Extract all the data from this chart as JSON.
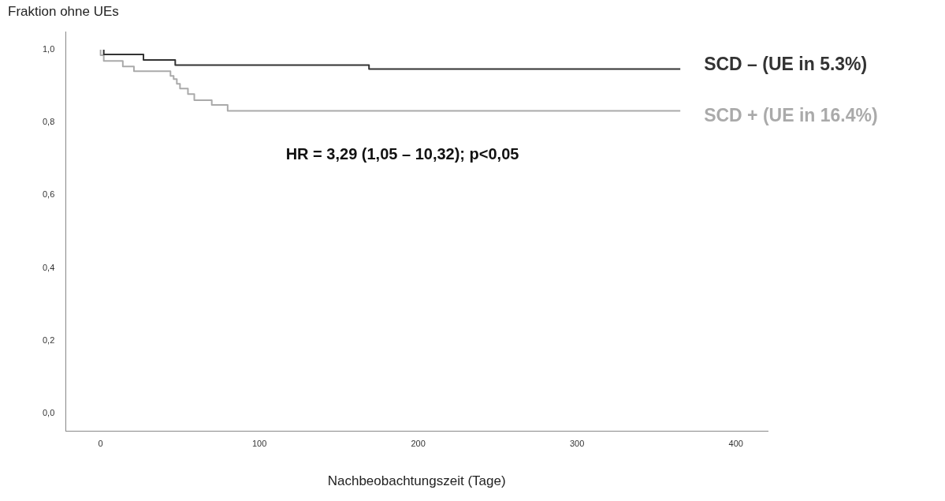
{
  "chart_data": {
    "type": "step",
    "xlabel": "Nachbeobachtungszeit (Tage)",
    "ylabel": "Fraktion ohne UEs",
    "annotations": [
      "HR = 3,29 (1,05 – 10,32); p<0,05"
    ],
    "xlim": [
      -22,
      420
    ],
    "ylim": [
      -0.05,
      1.05
    ],
    "xticks": [
      0,
      100,
      200,
      300,
      400
    ],
    "yticks": [
      {
        "value": 0,
        "label": "0,0"
      },
      {
        "value": 0.2,
        "label": "0,2"
      },
      {
        "value": 0.4,
        "label": "0,4"
      },
      {
        "value": 0.6,
        "label": "0,6"
      },
      {
        "value": 0.8,
        "label": "0,8"
      },
      {
        "value": 1,
        "label": "1,0"
      }
    ],
    "marker": "none",
    "legend": false,
    "series": [
      {
        "name": "SCD – (UE in 5.3%)",
        "color": "#333333",
        "x": [
          2,
          27,
          47,
          169,
          246,
          365
        ],
        "values": [
          1.0,
          0.987,
          0.972,
          0.958,
          0.947,
          0.947
        ]
      },
      {
        "name": "SCD + (UE in 16.4%)",
        "color": "#aaaaaa",
        "x": [
          0,
          2,
          14,
          21,
          44,
          46,
          48,
          50,
          55,
          59,
          70,
          80,
          334,
          365
        ],
        "values": [
          1.0,
          0.985,
          0.969,
          0.954,
          0.941,
          0.928,
          0.919,
          0.906,
          0.893,
          0.878,
          0.861,
          0.848,
          0.832,
          0.832
        ]
      }
    ]
  }
}
